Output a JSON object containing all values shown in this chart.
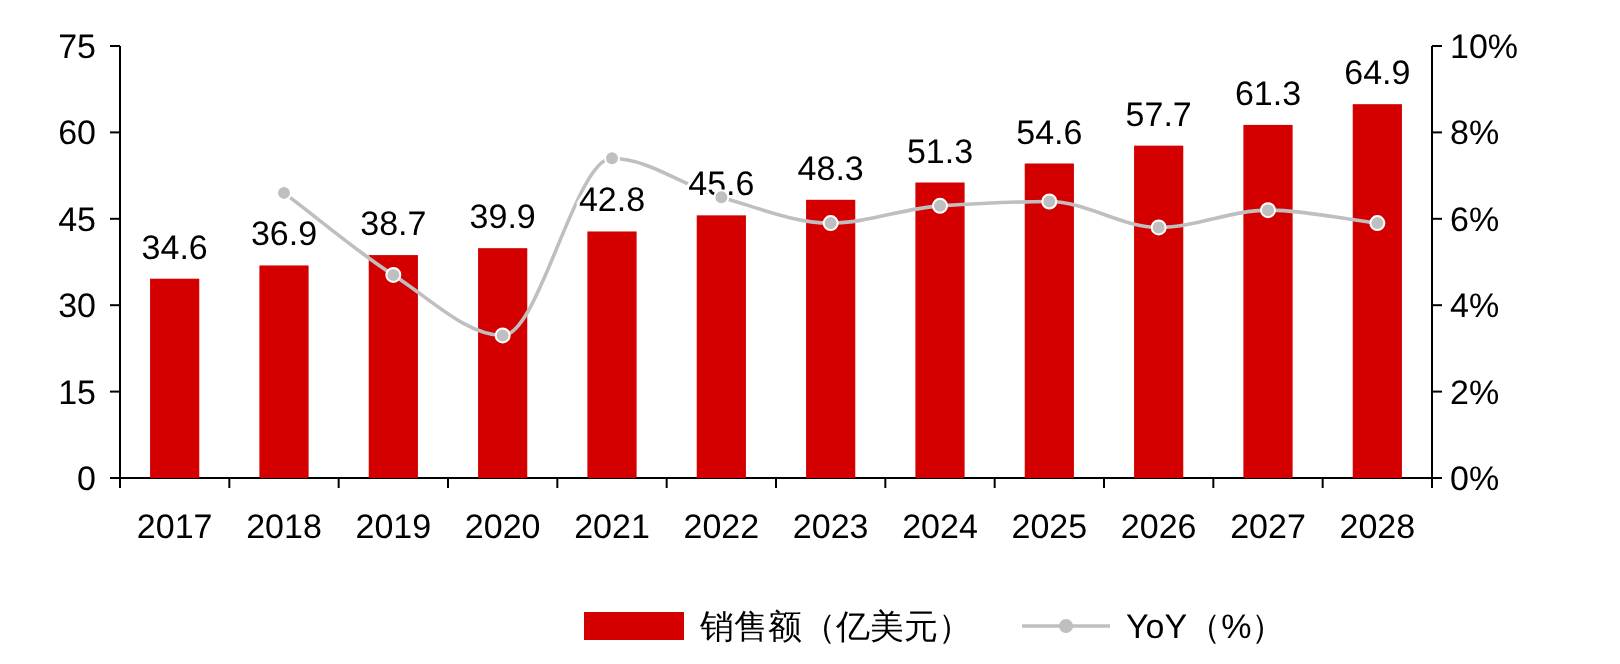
{
  "chart_data": {
    "type": "bar",
    "categories": [
      "2017",
      "2018",
      "2019",
      "2020",
      "2021",
      "2022",
      "2023",
      "2024",
      "2025",
      "2026",
      "2027",
      "2028"
    ],
    "series": [
      {
        "name": "销售额（亿美元）",
        "color": "#d40000",
        "values": [
          34.6,
          36.9,
          38.7,
          39.9,
          42.8,
          45.6,
          48.3,
          51.3,
          54.6,
          57.7,
          61.3,
          64.9
        ],
        "value_labels": [
          "34.6",
          "36.9",
          "38.7",
          "39.9",
          "42.8",
          "45.6",
          "48.3",
          "51.3",
          "54.6",
          "57.7",
          "61.3",
          "64.9"
        ]
      },
      {
        "name": "YoY（%）",
        "type": "line",
        "axis": "y2",
        "color": "#bfbfbf",
        "marker": "circle",
        "values": [
          null,
          6.6,
          4.7,
          3.3,
          7.4,
          6.5,
          5.9,
          6.3,
          6.4,
          5.8,
          6.2,
          5.9
        ]
      }
    ],
    "ylim": [
      0,
      75
    ],
    "yticks": [
      0,
      15,
      30,
      45,
      60,
      75
    ],
    "y2lim": [
      0,
      10
    ],
    "y2ticks": [
      {
        "value": 0,
        "label": "0%"
      },
      {
        "value": 2,
        "label": "2%"
      },
      {
        "value": 4,
        "label": "4%"
      },
      {
        "value": 6,
        "label": "6%"
      },
      {
        "value": 8,
        "label": "8%"
      },
      {
        "value": 10,
        "label": "10%"
      }
    ],
    "grid": false,
    "legend": "bottom"
  }
}
